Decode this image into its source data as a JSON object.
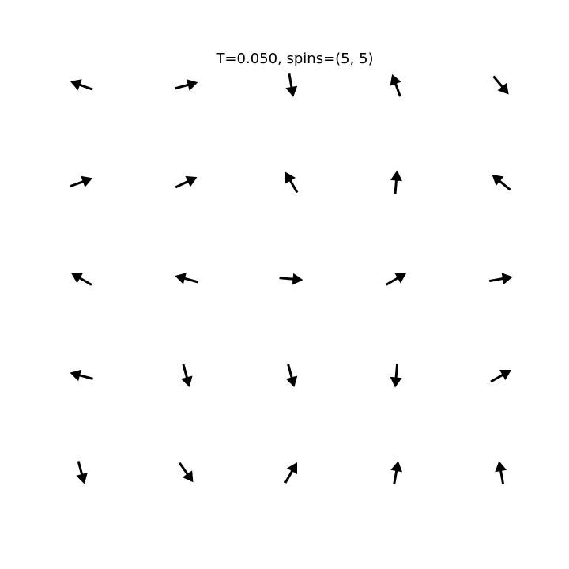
{
  "chart_data": {
    "type": "quiver",
    "title": "T=0.050, spins=(5, 5)",
    "xlabel": "",
    "ylabel": "",
    "axes_visible": false,
    "grid": false,
    "arrow_color": "#000000",
    "rows": 5,
    "cols": 5,
    "angles_deg": [
      [
        -75,
        -55,
        60,
        80,
        100
      ],
      [
        165,
        -75,
        -75,
        -95,
        30
      ],
      [
        150,
        165,
        -5,
        30,
        10
      ],
      [
        20,
        25,
        120,
        85,
        140
      ],
      [
        160,
        15,
        -80,
        110,
        -50
      ]
    ]
  }
}
